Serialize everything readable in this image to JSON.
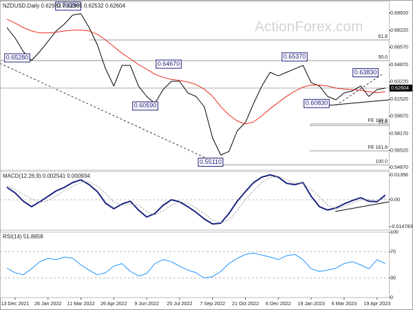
{
  "chart_data": [
    {
      "type": "line",
      "title": "NZDUSD,Daily  0.62983 0.62985 0.62532 0.62604",
      "watermark": "ActionForex.com",
      "series": [
        {
          "color": "#000000",
          "values": [
            0.6851,
            0.675,
            0.6616,
            0.6529,
            0.6616,
            0.6717,
            0.6818,
            0.6885,
            0.6972,
            0.6986,
            0.6851,
            0.6683,
            0.6448,
            0.628,
            0.6482,
            0.6482,
            0.628,
            0.6179,
            0.6112,
            0.6246,
            0.6327,
            0.6327,
            0.6213,
            0.6179,
            0.6078,
            0.5776,
            0.5608,
            0.5642,
            0.5843,
            0.5924,
            0.6112,
            0.628,
            0.6414,
            0.638,
            0.6414,
            0.6448,
            0.6482,
            0.6314,
            0.628,
            0.6179,
            0.6146,
            0.6213,
            0.6233,
            0.628,
            0.6179,
            0.6246,
            0.62604
          ]
        },
        {
          "color": "#e8291c",
          "values": [
            0.6932,
            0.6895,
            0.6851,
            0.6818,
            0.6798,
            0.6798,
            0.6805,
            0.6818,
            0.6825,
            0.6825,
            0.6818,
            0.6785,
            0.673,
            0.6665,
            0.66,
            0.6545,
            0.649,
            0.6445,
            0.6395,
            0.6365,
            0.6345,
            0.6335,
            0.632,
            0.6295,
            0.625,
            0.618,
            0.608,
            0.6,
            0.594,
            0.591,
            0.593,
            0.599,
            0.606,
            0.612,
            0.618,
            0.623,
            0.627,
            0.629,
            0.629,
            0.628,
            0.626,
            0.625,
            0.6245,
            0.624,
            0.6225,
            0.6215,
            0.6225
          ]
        }
      ],
      "ylim": [
        0.546,
        0.7106
      ],
      "yticks": [
        {
          "value": 0.6992,
          "label": "0.69920"
        },
        {
          "value": 0.6822,
          "label": "0.68220"
        },
        {
          "value": 0.6657,
          "label": "0.66570"
        },
        {
          "value": 0.6487,
          "label": "0.64870"
        },
        {
          "value": 0.6322,
          "label": "0.63220"
        },
        {
          "value": 0.6152,
          "label": "0.61520"
        },
        {
          "value": 0.5987,
          "label": "0.59870"
        },
        {
          "value": 0.5817,
          "label": "0.58170"
        },
        {
          "value": 0.5652,
          "label": "0.56520"
        },
        {
          "value": 0.5487,
          "label": "0.54870"
        }
      ],
      "last_price": {
        "value": 0.62604,
        "label": "0.62604"
      },
      "annotations": [
        {
          "value": 0.7033,
          "label": "0.70330"
        },
        {
          "value": 0.6528,
          "label": "0.65280"
        },
        {
          "value": 0.6467,
          "label": "0.64670"
        },
        {
          "value": 0.6059,
          "label": "0.60590"
        },
        {
          "value": 0.5511,
          "label": "0.55110"
        },
        {
          "value": 0.6537,
          "label": "0.65370"
        },
        {
          "value": 0.6383,
          "label": "0.63830"
        },
        {
          "value": 0.6083,
          "label": "0.60830"
        }
      ],
      "fib_levels": [
        {
          "value": 0.673,
          "label": "61.8"
        },
        {
          "value": 0.6528,
          "label": "50.0"
        },
        {
          "value": 0.591,
          "label": "FE 100.0"
        },
        {
          "value": 0.5895,
          "label": "61.8"
        },
        {
          "value": 0.5648,
          "label": "FE 161.8"
        },
        {
          "value": 0.5511,
          "label": "100.0"
        }
      ]
    },
    {
      "type": "line",
      "title": "MACD(12,26,9) 0.002541 0.000934",
      "zero_line": true,
      "series": [
        {
          "color": "#1a237e",
          "line_width": 2,
          "values": [
            0.0068,
            0.0038,
            -0.0008,
            -0.0038,
            -0.0011,
            0.0019,
            0.0049,
            0.0068,
            0.0094,
            0.0109,
            0.0083,
            0.0045,
            -0.0019,
            -0.0049,
            -0.0023,
            -0.0008,
            -0.0056,
            -0.0094,
            -0.0075,
            -0.003,
            0,
            -0.0011,
            -0.0038,
            -0.0068,
            -0.0105,
            -0.0132,
            -0.0128,
            -0.0075,
            -0.0008,
            0.0045,
            0.0094,
            0.0124,
            0.0136,
            0.0124,
            0.009,
            0.0083,
            0.0094,
            0.0019,
            -0.0038,
            -0.0056,
            -0.0045,
            -0.0023,
            -0.0004,
            0.0011,
            -0.0008,
            -0.0011,
            0.002541
          ]
        },
        {
          "color": "#999999",
          "line_width": 1,
          "dash": "dotted",
          "values": [
            0.0075,
            0.0058,
            0.003,
            0.0005,
            -0.0015,
            -0.0005,
            0.0022,
            0.005,
            0.0072,
            0.0095,
            0.0098,
            0.0075,
            0.0035,
            -0.001,
            -0.003,
            -0.0025,
            -0.003,
            -0.0065,
            -0.0082,
            -0.006,
            -0.003,
            -0.001,
            -0.002,
            -0.0045,
            -0.0075,
            -0.011,
            -0.0125,
            -0.011,
            -0.006,
            0,
            0.005,
            0.0095,
            0.0122,
            0.0128,
            0.011,
            0.0092,
            0.009,
            0.006,
            0.0015,
            -0.003,
            -0.0048,
            -0.0038,
            -0.0018,
            0,
            0.0002,
            -0.0006,
            0.000934
          ]
        }
      ],
      "ylim": [
        -0.01657,
        0.01544
      ],
      "yticks": [
        0.01356,
        {
          "value": 0,
          "label": "0.00"
        },
        -0.014783
      ]
    },
    {
      "type": "line",
      "title": "RSI(14) 51.8658",
      "grid": "dashed",
      "series": [
        {
          "color": "#1e90ff",
          "line_width": 1,
          "values": [
            45,
            38,
            35,
            44,
            55,
            60,
            58,
            62,
            60,
            50,
            42,
            35,
            38,
            48,
            52,
            40,
            33,
            37,
            52,
            58,
            55,
            48,
            42,
            38,
            30,
            32,
            40,
            52,
            60,
            66,
            68,
            65,
            62,
            58,
            64,
            66,
            58,
            44,
            40,
            42,
            45,
            52,
            55,
            50,
            44,
            58,
            51.8658
          ]
        }
      ],
      "ylim": [
        0,
        100
      ],
      "yticks": [
        100,
        70,
        30,
        0
      ],
      "categories": [
        null,
        "13 Dec 2021",
        null,
        null,
        null,
        "26 Jan 2022",
        null,
        null,
        null,
        "11 Mar 2022",
        null,
        null,
        null,
        "26 Apr 2022",
        null,
        null,
        null,
        "9 Jun 2022",
        null,
        null,
        null,
        "25 Jul 2022",
        null,
        null,
        null,
        "7 Sep 2022",
        null,
        null,
        null,
        "21 Oct 2022",
        null,
        null,
        null,
        "6 Dec 2022",
        null,
        null,
        null,
        "19 Jan 2023",
        null,
        null,
        null,
        "6 Mar 2023",
        null,
        null,
        null,
        "19 Apr 2023",
        null
      ]
    }
  ]
}
